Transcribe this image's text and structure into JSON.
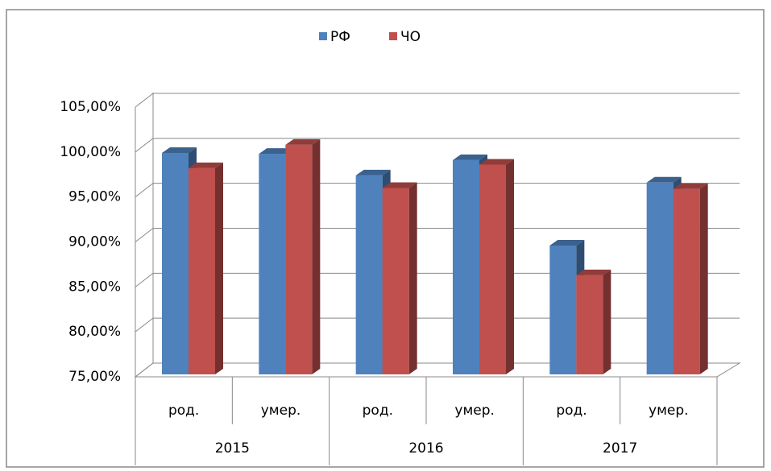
{
  "chart_data": {
    "type": "bar3d",
    "categories": [
      "род.",
      "умер.",
      "род.",
      "умер.",
      "род.",
      "умер."
    ],
    "groups": [
      "2015",
      "2016",
      "2017"
    ],
    "series": [
      {
        "name": "РФ",
        "color": "#4f81bd",
        "values": [
          99.9,
          99.8,
          97.4,
          99.1,
          89.6,
          96.6
        ]
      },
      {
        "name": "ЧО",
        "color": "#c0504d",
        "values": [
          98.2,
          100.8,
          96.0,
          98.6,
          86.3,
          95.9
        ]
      }
    ],
    "ylim": [
      75,
      105
    ],
    "yticks": [
      {
        "value": 75,
        "label": "75,00%"
      },
      {
        "value": 80,
        "label": "80,00%"
      },
      {
        "value": 85,
        "label": "85,00%"
      },
      {
        "value": 90,
        "label": "90,00%"
      },
      {
        "value": 95,
        "label": "95,00%"
      },
      {
        "value": 100,
        "label": "100,00%"
      },
      {
        "value": 105,
        "label": "105,00%"
      }
    ],
    "grid": true,
    "legend": "top"
  }
}
